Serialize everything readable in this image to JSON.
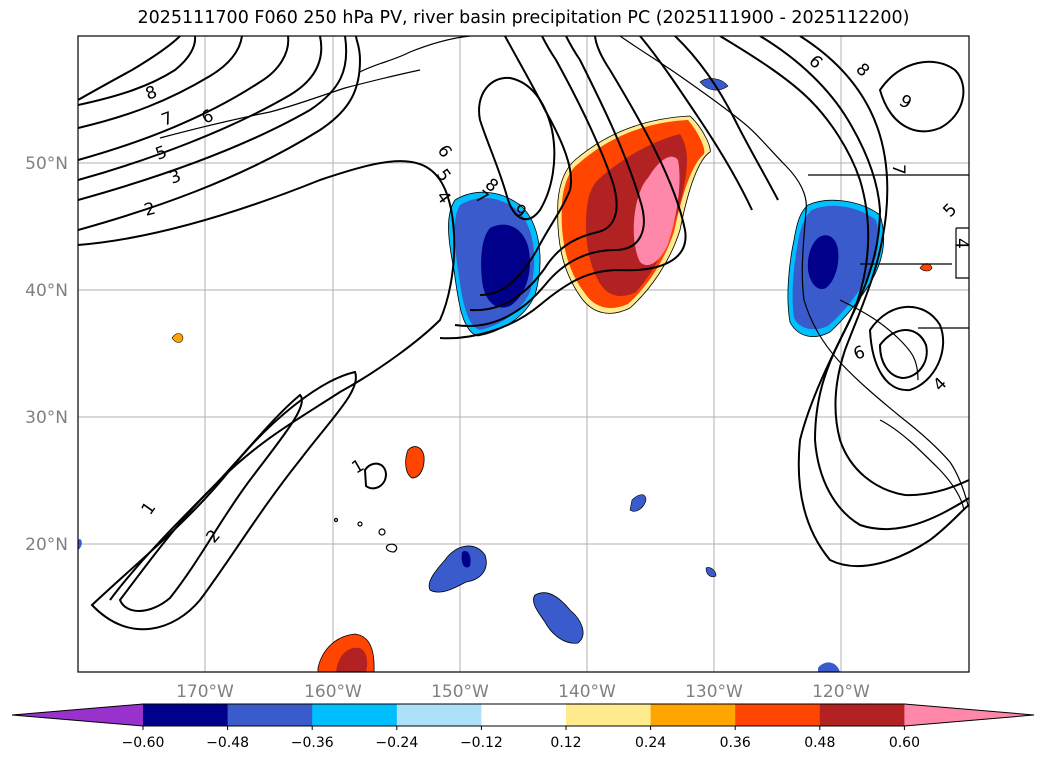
{
  "title": "2025111700 F060 250 hPa PV, river basin precipitation PC (2025111900 - 2025112200)",
  "map": {
    "lat_labels": [
      "50°N",
      "40°N",
      "30°N",
      "20°N"
    ],
    "lon_labels": [
      "170°W",
      "160°W",
      "150°W",
      "140°W",
      "130°W",
      "120°W"
    ],
    "contour_labels": [
      "8",
      "7",
      "6",
      "5",
      "3",
      "2",
      "6",
      "5",
      "4",
      "7",
      "8",
      "9",
      "6",
      "8",
      "9",
      "7",
      "5",
      "4",
      "6",
      "4",
      "1",
      "1",
      "2"
    ]
  },
  "colorbar": {
    "ticks": [
      "−0.60",
      "−0.48",
      "−0.36",
      "−0.24",
      "−0.12",
      "0.12",
      "0.24",
      "0.36",
      "0.48",
      "0.60"
    ],
    "colors": [
      "#9932CC",
      "#00008B",
      "#3A5BCB",
      "#00BFFF",
      "#ADE1FA",
      "#FFFFFF",
      "#FFEB8E",
      "#FFA500",
      "#FF4500",
      "#B22222",
      "#FF88AA"
    ]
  }
}
